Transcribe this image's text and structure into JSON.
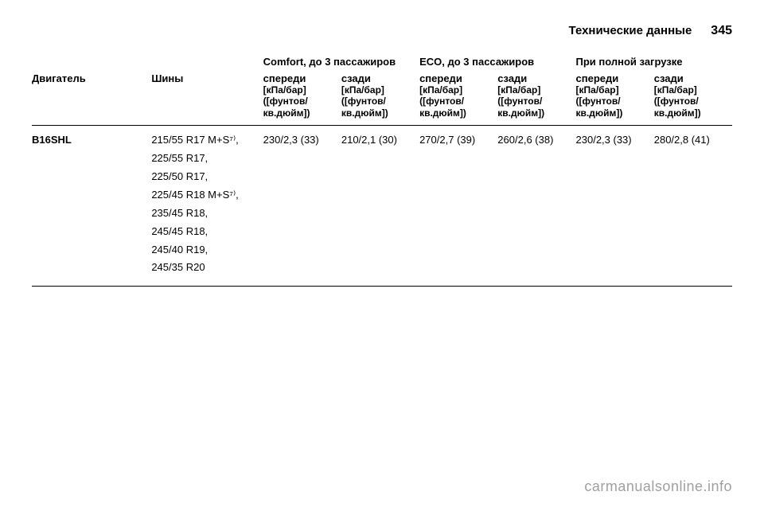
{
  "header": {
    "title": "Технические данные",
    "page": "345"
  },
  "groups": {
    "comfort": "Comfort, до 3 пассажиров",
    "eco": "ECO, до 3 пассажиров",
    "full": "При полной загрузке"
  },
  "cols": {
    "engine": "Двигатель",
    "tyres": "Шины",
    "front": "спереди",
    "rear": "сзади"
  },
  "unit": "[кПа/бар] ([фунтов/кв.дюйм])",
  "row": {
    "engine": "B16SHL",
    "tyres": [
      "215/55 R17 M+S⁷⁾,",
      "225/55 R17,",
      "225/50 R17,",
      "225/45 R18 M+S⁷⁾,",
      "235/45 R18,",
      "245/45 R18,",
      "245/40 R19,",
      "245/35 R20"
    ],
    "vals": {
      "comfort_front": "230/2,3 (33)",
      "comfort_rear": "210/2,1 (30)",
      "eco_front": "270/2,7 (39)",
      "eco_rear": "260/2,6 (38)",
      "full_front": "230/2,3 (33)",
      "full_rear": "280/2,8 (41)"
    }
  },
  "watermark": "carmanualsonline.info"
}
